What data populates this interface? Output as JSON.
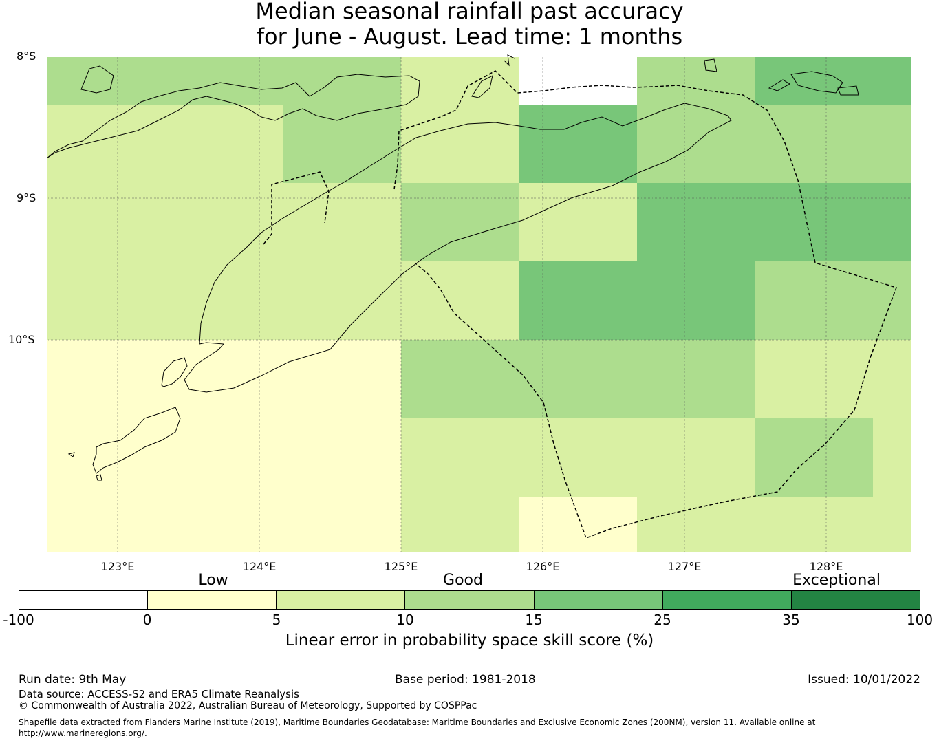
{
  "title_line1": "Median seasonal rainfall past accuracy",
  "title_line2": "for June - August. Lead time: 1 months",
  "map": {
    "lat_labels": [
      "8°S",
      "9°S",
      "10°S"
    ],
    "lon_labels": [
      "123°E",
      "124°E",
      "125°E",
      "126°E",
      "127°E",
      "128°E"
    ]
  },
  "colorbar": {
    "categories": [
      "Low",
      "Good",
      "Exceptional"
    ],
    "ticks": [
      "-100",
      "0",
      "5",
      "10",
      "15",
      "25",
      "35",
      "100"
    ],
    "colors": [
      "#ffffff",
      "#ffffcc",
      "#d9f0a3",
      "#addd8e",
      "#78c679",
      "#41ab5d",
      "#238443"
    ],
    "label": "Linear error in probability space skill score (%)"
  },
  "footer": {
    "run_date": "Run date: 9th May",
    "base_period": "Base period: 1981-2018",
    "issued": "Issued: 10/01/2022",
    "data_source": "Data source: ACCESS-S2 and ERA5 Climate Reanalysis",
    "copyright": "© Commonwealth of Australia 2022, Australian Bureau of Meteorology, Supported by COSPPac",
    "shapefile_line1": "Shapefile data extracted from Flanders Marine Institute (2019), Maritime Boundaries Geodatabase: Maritime Boundaries and Exclusive Economic Zones (200NM), version 11. Available online at",
    "shapefile_line2": "http://www.marineregions.org/."
  }
}
